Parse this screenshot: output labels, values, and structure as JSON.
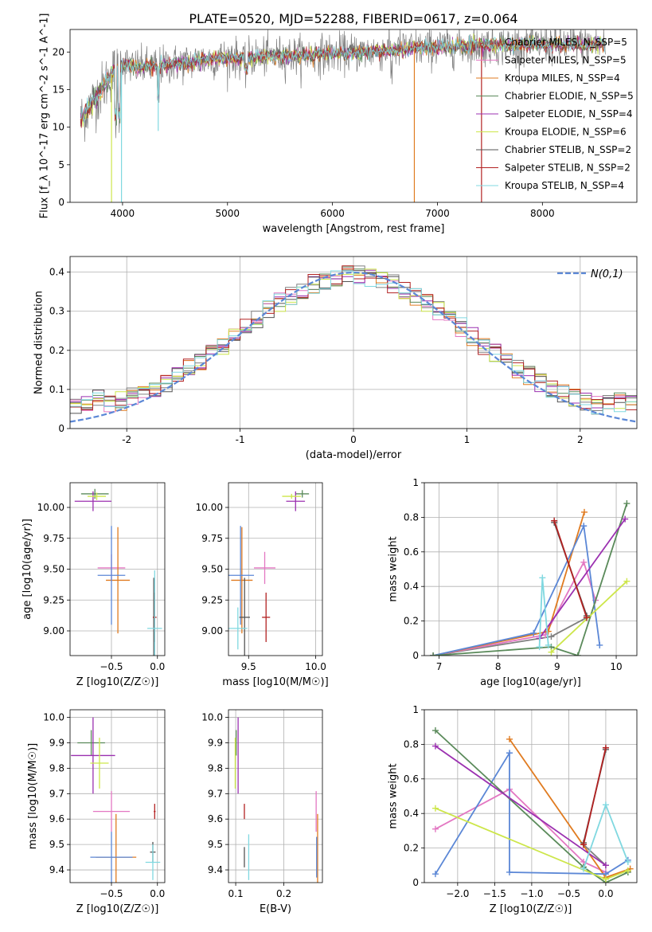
{
  "figure_title": "PLATE=0520, MJD=52288, FIBERID=0617, z=0.064",
  "colors": {
    "Chabrier MILES": "#808080",
    "Salpeter MILES": "#e377c2",
    "Kroupa MILES": "#e07b20",
    "Chabrier ELODIE": "#5a8a5a",
    "Salpeter ELODIE": "#9b30b0",
    "Kroupa ELODIE": "#cde64a",
    "Chabrier STELIB": "#555555",
    "Salpeter STELIB": "#b22222",
    "Kroupa STELIB": "#80d8e0",
    "blue": "#5b87d6"
  },
  "chart_data": [
    {
      "id": "spectrum",
      "type": "line",
      "title": "PLATE=0520, MJD=52288, FIBERID=0617, z=0.064",
      "xlabel": "wavelength [Angstrom, rest frame]",
      "ylabel": "Flux [f_λ 10^-17 erg cm^-2 s^-1 A^-1]",
      "xlim": [
        3500,
        8900
      ],
      "ylim": [
        0,
        23
      ],
      "xticks": [
        4000,
        5000,
        6000,
        7000,
        8000
      ],
      "yticks": [
        0,
        5,
        10,
        15,
        20
      ],
      "grid": false,
      "legend_position": "upper right",
      "legend": [
        {
          "label": "Chabrier MILES, N_SSP=5",
          "color": "#808080"
        },
        {
          "label": "Salpeter MILES, N_SSP=5",
          "color": "#e377c2"
        },
        {
          "label": "Kroupa MILES, N_SSP=4",
          "color": "#e07b20"
        },
        {
          "label": "Chabrier ELODIE, N_SSP=5",
          "color": "#5a8a5a"
        },
        {
          "label": "Salpeter ELODIE, N_SSP=4",
          "color": "#9b30b0"
        },
        {
          "label": "Kroupa ELODIE, N_SSP=6",
          "color": "#cde64a"
        },
        {
          "label": "Chabrier STELIB, N_SSP=2",
          "color": "#555555"
        },
        {
          "label": "Salpeter STELIB, N_SSP=2",
          "color": "#b22222"
        },
        {
          "label": "Kroupa STELIB, N_SSP=4",
          "color": "#80d8e0"
        }
      ],
      "continuum": {
        "wavelength": [
          3600,
          3700,
          3800,
          3900,
          4000,
          4100,
          4200,
          4400,
          4600,
          4800,
          5000,
          5200,
          5500,
          5800,
          6000,
          6300,
          6600,
          6800,
          7000,
          7200,
          7500,
          8000,
          8300,
          8600
        ],
        "flux": [
          11.0,
          13.0,
          15.0,
          17.2,
          18.5,
          18.0,
          18.0,
          18.2,
          18.6,
          19.0,
          19.2,
          19.3,
          19.5,
          19.6,
          19.8,
          20.0,
          20.3,
          20.5,
          20.6,
          20.8,
          20.9,
          21.0,
          21.0,
          21.0
        ]
      },
      "spikes": [
        {
          "wavelength": 3895,
          "flux": 0.0,
          "color": "#cde64a"
        },
        {
          "wavelength": 3990,
          "flux": 0.0,
          "color": "#80d8e0"
        },
        {
          "wavelength": 4340,
          "flux": 9.5,
          "color": "#80d8e0"
        },
        {
          "wavelength": 6780,
          "flux": 0.0,
          "color": "#e07b20"
        },
        {
          "wavelength": 7420,
          "flux": 0.0,
          "color": "#b22222"
        }
      ]
    },
    {
      "id": "residuals",
      "type": "histogram",
      "xlabel": "(data-model)/error",
      "ylabel": "Normed distribution",
      "xlim": [
        -2.5,
        2.5
      ],
      "ylim": [
        0,
        0.44
      ],
      "xticks": [
        -2,
        -1,
        0,
        1,
        2
      ],
      "yticks": [
        0.0,
        0.1,
        0.2,
        0.3,
        0.4
      ],
      "grid": true,
      "bin_width": 0.1,
      "legend_position": "upper right",
      "reference": {
        "label": "N(0,1)",
        "mean": 0,
        "sigma": 1,
        "color": "#5b87d6",
        "style": "dashed"
      }
    },
    {
      "id": "age_vs_Z",
      "type": "scatter",
      "xlabel": "Z [log10(Z/Z☉)]",
      "ylabel": "age  [log10(age/yr)]",
      "xlim": [
        -0.95,
        0.08
      ],
      "ylim": [
        8.8,
        10.2
      ],
      "xticks": [
        -0.5,
        0.0
      ],
      "xtick_labels": [
        "−0.5",
        "0.0"
      ],
      "yticks": [
        9.0,
        9.25,
        9.5,
        9.75,
        10.0
      ],
      "ytick_labels": [
        "9.00",
        "9.25",
        "9.50",
        "9.75",
        "10.00"
      ],
      "grid": true,
      "points": [
        {
          "x": -0.5,
          "y": 9.51,
          "xerr": 0.15,
          "yerr": 0.11,
          "color": "#e377c2"
        },
        {
          "x": -0.43,
          "y": 9.41,
          "xerr": 0.13,
          "yerr": 0.43,
          "color": "#e07b20"
        },
        {
          "x": -0.5,
          "y": 9.45,
          "xerr": 0.15,
          "yerr": 0.4,
          "color": "#5b87d6"
        },
        {
          "x": -0.68,
          "y": 10.11,
          "xerr": 0.15,
          "yerr": 0.04,
          "color": "#5a8a5a"
        },
        {
          "x": -0.7,
          "y": 10.05,
          "xerr": 0.2,
          "yerr": 0.08,
          "color": "#9b30b0"
        },
        {
          "x": -0.66,
          "y": 10.09,
          "xerr": 0.1,
          "yerr": 0.03,
          "color": "#cde64a"
        },
        {
          "x": -0.04,
          "y": 9.11,
          "xerr": 0.01,
          "yerr": 0.32,
          "color": "#555555"
        },
        {
          "x": -0.03,
          "y": 9.11,
          "xerr": 0.02,
          "yerr": 0.2,
          "color": "#b22222"
        },
        {
          "x": -0.03,
          "y": 9.02,
          "xerr": 0.08,
          "yerr": 0.47,
          "color": "#80d8e0"
        }
      ]
    },
    {
      "id": "age_vs_mass",
      "type": "scatter",
      "xlabel": "mass [log10(M/M☉)]",
      "xlim": [
        9.35,
        10.05
      ],
      "ylim": [
        8.8,
        10.2
      ],
      "xticks": [
        9.5,
        10.0
      ],
      "xtick_labels": [
        "9.5",
        "10.0"
      ],
      "yticks": [
        9.0,
        9.25,
        9.5,
        9.75,
        10.0
      ],
      "ytick_labels": [
        "9.00",
        "9.25",
        "9.50",
        "9.75",
        "10.00"
      ],
      "grid": true,
      "points": [
        {
          "x": 9.62,
          "y": 9.51,
          "xerr": 0.08,
          "yerr": 0.13,
          "color": "#e377c2"
        },
        {
          "x": 9.45,
          "y": 9.41,
          "xerr": 0.08,
          "yerr": 0.43,
          "color": "#e07b20"
        },
        {
          "x": 9.44,
          "y": 9.45,
          "xerr": 0.1,
          "yerr": 0.4,
          "color": "#5b87d6"
        },
        {
          "x": 9.9,
          "y": 10.11,
          "xerr": 0.05,
          "yerr": 0.03,
          "color": "#5a8a5a"
        },
        {
          "x": 9.85,
          "y": 10.05,
          "xerr": 0.07,
          "yerr": 0.08,
          "color": "#9b30b0"
        },
        {
          "x": 9.82,
          "y": 10.09,
          "xerr": 0.07,
          "yerr": 0.02,
          "color": "#cde64a"
        },
        {
          "x": 9.47,
          "y": 9.11,
          "xerr": 0.04,
          "yerr": 0.32,
          "color": "#555555"
        },
        {
          "x": 9.63,
          "y": 9.11,
          "xerr": 0.03,
          "yerr": 0.2,
          "color": "#b22222"
        },
        {
          "x": 9.42,
          "y": 9.02,
          "xerr": 0.07,
          "yerr": 0.17,
          "color": "#80d8e0"
        }
      ]
    },
    {
      "id": "weight_vs_age",
      "type": "line",
      "xlabel": "age  [log10(age/yr)]",
      "ylabel": "mass weight",
      "xlim": [
        6.75,
        10.35
      ],
      "ylim": [
        0,
        1
      ],
      "xticks": [
        7,
        8,
        9,
        10
      ],
      "yticks": [
        0.0,
        0.2,
        0.4,
        0.6,
        0.8,
        1.0
      ],
      "grid": true,
      "series": [
        {
          "color": "#808080",
          "x": [
            6.9,
            8.9,
            9.5
          ],
          "y": [
            0.0,
            0.11,
            0.22
          ]
        },
        {
          "color": "#e377c2",
          "x": [
            6.9,
            8.8,
            9.45,
            9.65
          ],
          "y": [
            0.0,
            0.12,
            0.54,
            0.32
          ]
        },
        {
          "color": "#e07b20",
          "x": [
            6.9,
            8.85,
            9.46
          ],
          "y": [
            0.0,
            0.14,
            0.83
          ]
        },
        {
          "color": "#5b87d6",
          "x": [
            6.9,
            8.6,
            9.45,
            9.72
          ],
          "y": [
            0.0,
            0.13,
            0.75,
            0.06
          ]
        },
        {
          "color": "#5a8a5a",
          "x": [
            6.9,
            8.9,
            9.35,
            10.18
          ],
          "y": [
            0.0,
            0.05,
            0.0,
            0.88
          ]
        },
        {
          "color": "#9b30b0",
          "x": [
            8.7,
            10.15
          ],
          "y": [
            0.1,
            0.79
          ]
        },
        {
          "color": "#cde64a",
          "x": [
            8.9,
            10.18
          ],
          "y": [
            0.02,
            0.43
          ]
        },
        {
          "color": "#555555",
          "x": [
            8.95,
            9.5
          ],
          "y": [
            0.77,
            0.23
          ]
        },
        {
          "color": "#b22222",
          "x": [
            8.95,
            9.5
          ],
          "y": [
            0.78,
            0.22
          ]
        },
        {
          "color": "#80d8e0",
          "x": [
            8.7,
            8.75,
            8.85
          ],
          "y": [
            0.05,
            0.45,
            0.06
          ]
        }
      ]
    },
    {
      "id": "mass_vs_Z",
      "type": "scatter",
      "xlabel": "Z [log10(Z/Z☉)]",
      "ylabel": "mass [log10(M/M☉)]",
      "xlim": [
        -0.95,
        0.08
      ],
      "ylim": [
        9.35,
        10.03
      ],
      "xticks": [
        -0.5,
        0.0
      ],
      "xtick_labels": [
        "−0.5",
        "0.0"
      ],
      "yticks": [
        9.4,
        9.5,
        9.6,
        9.7,
        9.8,
        9.9,
        10.0
      ],
      "ytick_labels": [
        "9.4",
        "9.5",
        "9.6",
        "9.7",
        "9.8",
        "9.9",
        "10.0"
      ],
      "grid": true,
      "points": [
        {
          "x": -0.5,
          "y": 9.63,
          "xerr": 0.2,
          "yerr": 0.08,
          "color": "#e377c2"
        },
        {
          "x": -0.45,
          "y": 9.45,
          "xerr": 0.22,
          "yerr": 0.17,
          "color": "#e07b20"
        },
        {
          "x": -0.5,
          "y": 9.45,
          "xerr": 0.23,
          "yerr": 0.1,
          "color": "#5b87d6"
        },
        {
          "x": -0.72,
          "y": 9.9,
          "xerr": 0.15,
          "yerr": 0.05,
          "color": "#5a8a5a"
        },
        {
          "x": -0.7,
          "y": 9.85,
          "xerr": 0.24,
          "yerr": 0.15,
          "color": "#9b30b0"
        },
        {
          "x": -0.63,
          "y": 9.82,
          "xerr": 0.1,
          "yerr": 0.1,
          "color": "#cde64a"
        },
        {
          "x": -0.05,
          "y": 9.47,
          "xerr": 0.03,
          "yerr": 0.04,
          "color": "#555555"
        },
        {
          "x": -0.03,
          "y": 9.63,
          "xerr": 0.01,
          "yerr": 0.03,
          "color": "#b22222"
        },
        {
          "x": -0.05,
          "y": 9.43,
          "xerr": 0.08,
          "yerr": 0.07,
          "color": "#80d8e0"
        }
      ]
    },
    {
      "id": "mass_vs_ebv",
      "type": "scatter",
      "xlabel": "E(B-V)",
      "xlim": [
        0.085,
        0.28
      ],
      "ylim": [
        9.35,
        10.03
      ],
      "xticks": [
        0.1,
        0.2
      ],
      "xtick_labels": [
        "0.1",
        "0.2"
      ],
      "yticks": [
        9.4,
        9.5,
        9.6,
        9.7,
        9.8,
        9.9,
        10.0
      ],
      "ytick_labels": [
        "9.4",
        "9.5",
        "9.6",
        "9.7",
        "9.8",
        "9.9",
        "10.0"
      ],
      "grid": true,
      "points": [
        {
          "x": 0.267,
          "y": 9.63,
          "xerr": 0,
          "yerr": 0.08,
          "color": "#e377c2"
        },
        {
          "x": 0.27,
          "y": 9.45,
          "xerr": 0,
          "yerr": 0.17,
          "color": "#e07b20"
        },
        {
          "x": 0.268,
          "y": 9.45,
          "xerr": 0,
          "yerr": 0.08,
          "color": "#5b87d6"
        },
        {
          "x": 0.101,
          "y": 9.9,
          "xerr": 0,
          "yerr": 0.05,
          "color": "#5a8a5a"
        },
        {
          "x": 0.105,
          "y": 9.85,
          "xerr": 0,
          "yerr": 0.15,
          "color": "#9b30b0"
        },
        {
          "x": 0.099,
          "y": 9.82,
          "xerr": 0,
          "yerr": 0.1,
          "color": "#cde64a"
        },
        {
          "x": 0.118,
          "y": 9.45,
          "xerr": 0,
          "yerr": 0.04,
          "color": "#555555"
        },
        {
          "x": 0.118,
          "y": 9.63,
          "xerr": 0,
          "yerr": 0.03,
          "color": "#b22222"
        },
        {
          "x": 0.127,
          "y": 9.45,
          "xerr": 0,
          "yerr": 0.09,
          "color": "#80d8e0"
        }
      ]
    },
    {
      "id": "weight_vs_Z",
      "type": "line",
      "xlabel": "Z [log10(Z/Z☉)]",
      "ylabel": "mass weight",
      "xlim": [
        -2.45,
        0.42
      ],
      "ylim": [
        0,
        1
      ],
      "xticks": [
        -2.0,
        -1.5,
        -1.0,
        -0.5,
        0.0
      ],
      "xtick_labels": [
        "−2.0",
        "−1.5",
        "−1.0",
        "−0.5",
        "0.0"
      ],
      "yticks": [
        0.0,
        0.2,
        0.4,
        0.6,
        0.8,
        1.0
      ],
      "grid": true,
      "series": [
        {
          "color": "#808080",
          "x": [
            -0.3,
            0.0
          ],
          "y": [
            0.22,
            0.1
          ]
        },
        {
          "color": "#e377c2",
          "x": [
            -2.3,
            -1.3,
            -0.3,
            0.0
          ],
          "y": [
            0.31,
            0.54,
            0.12,
            0.06
          ]
        },
        {
          "color": "#e07b20",
          "x": [
            -1.3,
            0.0,
            0.33
          ],
          "y": [
            0.83,
            0.03,
            0.08
          ]
        },
        {
          "color": "#5b87d6",
          "x": [
            -2.3,
            -1.3,
            -1.3,
            0.0,
            0.3
          ],
          "y": [
            0.05,
            0.75,
            0.06,
            0.05,
            0.13
          ]
        },
        {
          "color": "#5a8a5a",
          "x": [
            -2.3,
            -0.3,
            0.0,
            0.3
          ],
          "y": [
            0.88,
            0.09,
            0.0,
            0.06
          ]
        },
        {
          "color": "#9b30b0",
          "x": [
            -2.3,
            0.0
          ],
          "y": [
            0.79,
            0.1
          ]
        },
        {
          "color": "#cde64a",
          "x": [
            -2.3,
            0.0,
            0.3
          ],
          "y": [
            0.43,
            0.02,
            0.07
          ]
        },
        {
          "color": "#555555",
          "x": [
            -0.3,
            0.0
          ],
          "y": [
            0.23,
            0.77
          ]
        },
        {
          "color": "#b22222",
          "x": [
            -0.3,
            0.0
          ],
          "y": [
            0.22,
            0.78
          ]
        },
        {
          "color": "#80d8e0",
          "x": [
            -0.3,
            0.0,
            0.3
          ],
          "y": [
            0.08,
            0.45,
            0.12
          ]
        }
      ]
    }
  ]
}
